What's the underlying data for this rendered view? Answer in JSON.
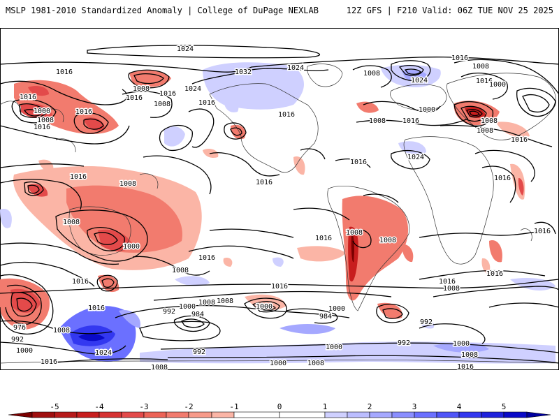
{
  "header": {
    "left_title": "MSLP 1981-2010 Standardized Anomaly | College of DuPage NEXLAB",
    "right_title": "12Z GFS | F210 Valid: 06Z TUE NOV 25 2025"
  },
  "map": {
    "projection": "global cylindrical",
    "isobar_labels": [
      "1024",
      "1016",
      "1032",
      "1024",
      "1008",
      "1024",
      "1016",
      "1008",
      "1016",
      "1024",
      "1000",
      "1008",
      "1016",
      "1016",
      "1008",
      "1016",
      "1016",
      "1016",
      "1008",
      "1000",
      "1016",
      "1008",
      "1000",
      "1008",
      "1016",
      "1008",
      "1016",
      "1024",
      "1016",
      "1016",
      "1008",
      "1016",
      "1016",
      "1000",
      "1008",
      "1016",
      "1008",
      "1016",
      "1016",
      "1016",
      "1008",
      "1016",
      "1008",
      "1000",
      "1008",
      "1016",
      "1008",
      "992",
      "1000",
      "1008",
      "984",
      "984",
      "1000",
      "992",
      "976",
      "992",
      "1000",
      "1016",
      "1024",
      "992",
      "1000",
      "1008",
      "992",
      "1000",
      "1016",
      "1008",
      "1000",
      "1008",
      "1016",
      "1016",
      "1016",
      "1008",
      "1008"
    ]
  },
  "colorbar": {
    "ticks": [
      "-5",
      "-4",
      "-3",
      "-2",
      "-1",
      "0",
      "1",
      "2",
      "3",
      "4",
      "5"
    ],
    "colors": {
      "neg5": "#7a0000",
      "neg4": "#c81e1e",
      "neg3": "#e34a4a",
      "neg2": "#f27b6e",
      "neg1": "#fbb5a6",
      "zero": "#ffffff",
      "pos1": "#cfd0ff",
      "pos2": "#a5a8ff",
      "pos3": "#6b70ff",
      "pos4": "#3338f0",
      "pos5": "#0a0ac8"
    }
  }
}
